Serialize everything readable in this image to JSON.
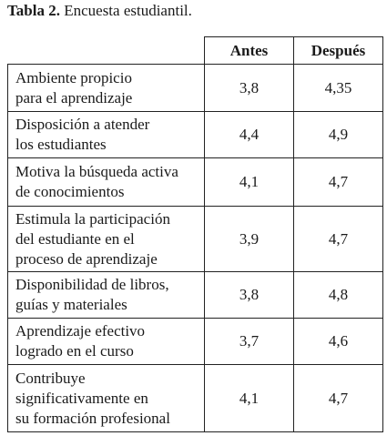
{
  "caption": {
    "label": "Tabla 2.",
    "text": "Encuesta estudiantil."
  },
  "table": {
    "headers": [
      "Antes",
      "Después"
    ],
    "rows": [
      {
        "label": [
          "Ambiente propicio",
          "para el aprendizaje"
        ],
        "values": [
          "3,8",
          "4,35"
        ]
      },
      {
        "label": [
          "Disposición a atender",
          "los estudiantes"
        ],
        "values": [
          "4,4",
          "4,9"
        ]
      },
      {
        "label": [
          "Motiva la búsqueda activa",
          "de conocimientos"
        ],
        "values": [
          "4,1",
          "4,7"
        ]
      },
      {
        "label": [
          "Estimula la participación",
          "del estudiante en el",
          "proceso de aprendizaje"
        ],
        "values": [
          "3,9",
          "4,7"
        ]
      },
      {
        "label": [
          "Disponibilidad de libros,",
          "guías y materiales"
        ],
        "values": [
          "3,8",
          "4,8"
        ]
      },
      {
        "label": [
          "Aprendizaje efectivo",
          "logrado en el curso"
        ],
        "values": [
          "3,7",
          "4,6"
        ]
      },
      {
        "label": [
          "Contribuye",
          "significativamente en",
          "su formación profesional"
        ],
        "values": [
          "4,1",
          "4,7"
        ]
      }
    ]
  }
}
